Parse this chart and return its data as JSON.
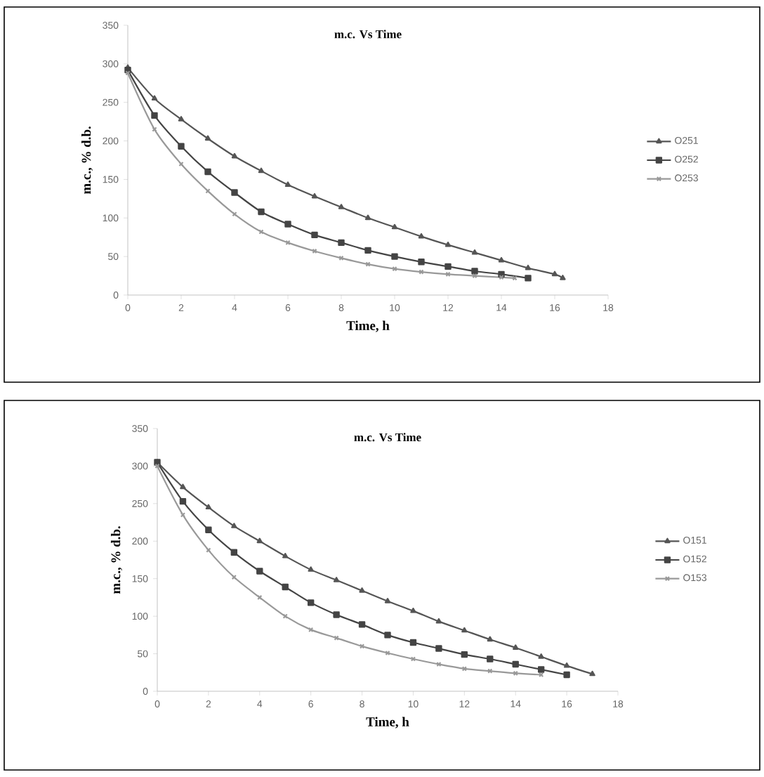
{
  "chart_data": [
    {
      "type": "line",
      "title": "m.c. Vs Time",
      "xlabel": "Time, h",
      "ylabel": "m.c., % d.b.",
      "xlim": [
        0,
        18
      ],
      "xticks": [
        0,
        2,
        4,
        6,
        8,
        10,
        12,
        14,
        16,
        18
      ],
      "ylim": [
        0,
        350
      ],
      "yticks": [
        0,
        50,
        100,
        150,
        200,
        250,
        300,
        350
      ],
      "legend": "right",
      "series": [
        {
          "name": "O251",
          "color": "#555555",
          "marker": "triangle",
          "x": [
            0,
            1,
            2,
            3,
            4,
            5,
            6,
            7,
            8,
            9,
            10,
            11,
            12,
            13,
            14,
            15,
            16,
            16.3
          ],
          "values": [
            295,
            255,
            228,
            203,
            180,
            161,
            143,
            128,
            114,
            100,
            88,
            76,
            65,
            55,
            45,
            35,
            27,
            22
          ]
        },
        {
          "name": "O252",
          "color": "#444444",
          "marker": "square",
          "x": [
            0,
            1,
            2,
            3,
            4,
            5,
            6,
            7,
            8,
            9,
            10,
            11,
            12,
            13,
            14,
            15
          ],
          "values": [
            292,
            233,
            193,
            160,
            133,
            108,
            92,
            78,
            68,
            58,
            50,
            43,
            37,
            31,
            27,
            22
          ]
        },
        {
          "name": "O253",
          "color": "#999999",
          "marker": "cross",
          "x": [
            0,
            1,
            2,
            3,
            4,
            5,
            6,
            7,
            8,
            9,
            10,
            11,
            12,
            13,
            14,
            14.5
          ],
          "values": [
            288,
            215,
            170,
            135,
            105,
            82,
            68,
            57,
            48,
            40,
            34,
            30,
            27,
            25,
            23,
            22
          ]
        }
      ]
    },
    {
      "type": "line",
      "title": "m.c. Vs Time",
      "xlabel": "Time, h",
      "ylabel": "m.c., % d.b.",
      "xlim": [
        0,
        18
      ],
      "xticks": [
        0,
        2,
        4,
        6,
        8,
        10,
        12,
        14,
        16,
        18
      ],
      "ylim": [
        0,
        350
      ],
      "yticks": [
        0,
        50,
        100,
        150,
        200,
        250,
        300,
        350
      ],
      "legend": "right",
      "series": [
        {
          "name": "O151",
          "color": "#555555",
          "marker": "triangle",
          "x": [
            0,
            1,
            2,
            3,
            4,
            5,
            6,
            7,
            8,
            9,
            10,
            11,
            12,
            13,
            14,
            15,
            16,
            17
          ],
          "values": [
            305,
            272,
            245,
            220,
            200,
            180,
            162,
            148,
            134,
            120,
            107,
            93,
            81,
            69,
            58,
            46,
            34,
            23
          ]
        },
        {
          "name": "O152",
          "color": "#444444",
          "marker": "square",
          "x": [
            0,
            1,
            2,
            3,
            4,
            5,
            6,
            7,
            8,
            9,
            10,
            11,
            12,
            13,
            14,
            15,
            16
          ],
          "values": [
            305,
            253,
            215,
            185,
            160,
            139,
            118,
            102,
            89,
            75,
            65,
            57,
            49,
            43,
            36,
            29,
            22
          ]
        },
        {
          "name": "O153",
          "color": "#999999",
          "marker": "cross",
          "x": [
            0,
            1,
            2,
            3,
            4,
            5,
            6,
            7,
            8,
            9,
            10,
            11,
            12,
            13,
            14,
            15
          ],
          "values": [
            300,
            235,
            188,
            152,
            125,
            100,
            82,
            71,
            60,
            51,
            43,
            36,
            30,
            27,
            24,
            22
          ]
        }
      ]
    }
  ]
}
